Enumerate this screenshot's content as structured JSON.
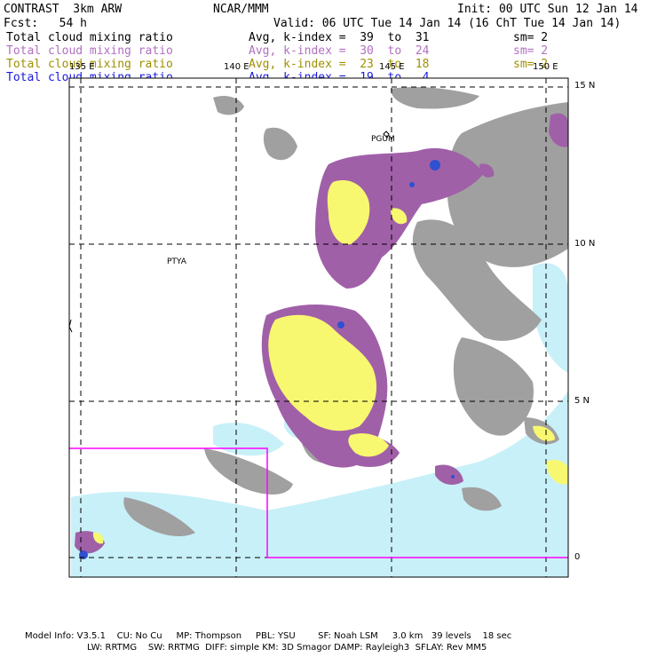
{
  "header": {
    "model": "CONTRAST  3km ARW",
    "org": "NCAR/MMM",
    "init": "Init: 00 UTC Sun 12 Jan 14",
    "fcst": "Fcst:   54 h",
    "valid": "Valid: 06 UTC Tue 14 Jan 14 (16 ChT Tue 14 Jan 14)"
  },
  "fields": [
    {
      "name": "Total cloud mixing ratio",
      "avg": "Avg, k-index =  39  to  31",
      "sm": "sm= 2",
      "color": "#000000"
    },
    {
      "name": "Total cloud mixing ratio",
      "avg": "Avg, k-index =  30  to  24",
      "sm": "sm= 2",
      "color": "#b070c0"
    },
    {
      "name": "Total cloud mixing ratio",
      "avg": "Avg, k-index =  23  to  18",
      "sm": "sm= 2",
      "color": "#a09000"
    },
    {
      "name": "Total cloud mixing ratio",
      "avg": "Avg, k-index =  19  to   4",
      "sm": "",
      "color": "#1a1ae0"
    }
  ],
  "map": {
    "lon_labels": [
      "135 E",
      "140 E",
      "145 E",
      "150 E"
    ],
    "lat_labels": [
      "15 N",
      "10 N",
      "5 N",
      "0"
    ],
    "places": [
      "PGUM",
      "PTYA"
    ],
    "colors": {
      "level1": "#a0a0a0",
      "level2": "#a060a8",
      "level3": "#f8f870",
      "level4": "#c8f0f8",
      "level5": "#3050d0",
      "box": "#ff00ff"
    }
  },
  "footer": {
    "line1": "Model Info: V3.5.1    CU: No Cu     MP: Thompson     PBL: YSU        SF: Noah LSM     3.0 km   39 levels    18 sec",
    "line2": "LW: RRTMG    SW: RRTMG  DIFF: simple KM: 3D Smagor DAMP: Rayleigh3  SFLAY: Rev MM5"
  }
}
